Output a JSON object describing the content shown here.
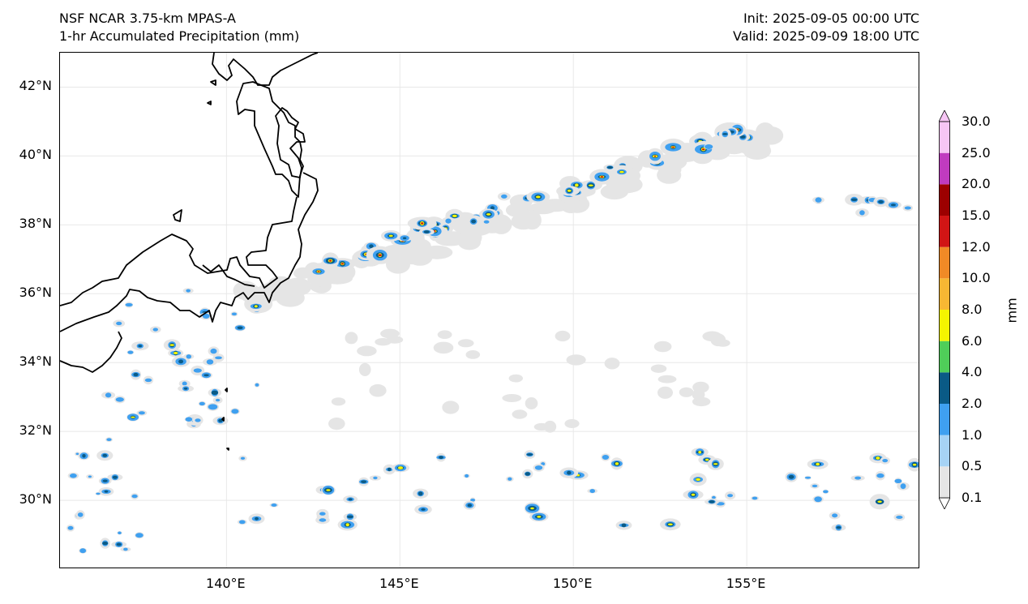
{
  "header": {
    "model": "NSF NCAR 3.75-km MPAS-A",
    "field": "1-hr Accumulated Precipitation (mm)",
    "init": "Init: 2025-09-05 00:00 UTC",
    "valid": "Valid: 2025-09-09 18:00 UTC"
  },
  "map": {
    "lon_range": [
      135.2,
      160.0
    ],
    "lat_range": [
      28.0,
      43.0
    ],
    "lat_labels": [
      "42°N",
      "40°N",
      "38°N",
      "36°N",
      "34°N",
      "32°N",
      "30°N"
    ],
    "lon_labels": [
      "140°E",
      "145°E",
      "150°E",
      "155°E"
    ],
    "features": [
      "Honshu coastline",
      "Hokkaido coastline",
      "Precipitation band along Kuroshio extension",
      "Scattered convection near 30°N"
    ]
  },
  "colorbar": {
    "title": "mm",
    "levels": [
      "0.1",
      "0.5",
      "1.0",
      "2.0",
      "4.0",
      "6.0",
      "8.0",
      "10.0",
      "12.0",
      "15.0",
      "20.0",
      "25.0",
      "30.0"
    ],
    "colors": [
      "#e5e5e5",
      "#a6d3f5",
      "#3fa0f0",
      "#0a5a86",
      "#4fce59",
      "#f5f500",
      "#f7b733",
      "#f08a26",
      "#d11515",
      "#9c0000",
      "#c03bbf",
      "#f7c6f5"
    ]
  },
  "colors": {
    "frame": "#000000",
    "coast": "#000000",
    "grid": "#e8e8e8"
  }
}
